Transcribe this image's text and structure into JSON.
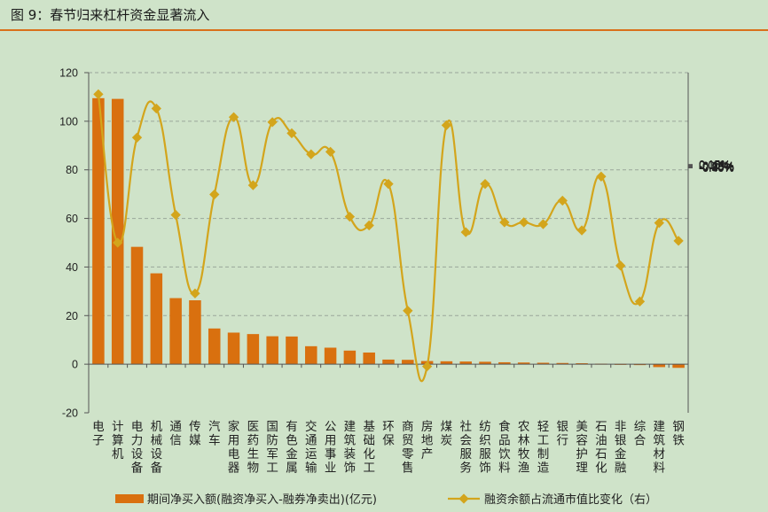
{
  "title": "图 9：春节归来杠杆资金显著流入",
  "chart_data": {
    "type": "bar+line",
    "categories": [
      "电子",
      "计算机",
      "电力设备",
      "机械设备",
      "通信",
      "传媒",
      "汽车",
      "家用电器",
      "医药生物",
      "国防军工",
      "有色金属",
      "交通运输",
      "公用事业",
      "建筑装饰",
      "基础化工",
      "环保",
      "商贸零售",
      "房地产",
      "煤炭",
      "社会服务",
      "纺织服饰",
      "食品饮料",
      "农林牧渔",
      "轻工制造",
      "银行",
      "美容护理",
      "石油石化",
      "非银金融",
      "综合",
      "建筑材料",
      "钢铁"
    ],
    "series": [
      {
        "name": "期间净买入额(融资净买入-融券净卖出)(亿元)",
        "type": "bar",
        "axis": "left",
        "color": "#d9700f",
        "values": [
          109.5,
          109.2,
          48.3,
          37.4,
          27.2,
          26.3,
          14.7,
          13.0,
          12.4,
          11.5,
          11.4,
          7.4,
          6.8,
          5.6,
          4.8,
          1.9,
          1.8,
          1.3,
          1.2,
          1.1,
          1.0,
          0.8,
          0.7,
          0.6,
          0.5,
          0.4,
          0.2,
          0.1,
          0.0,
          -1.2,
          -1.5
        ]
      },
      {
        "name": "融资余额占流通市值比变化（右）",
        "type": "line",
        "axis": "right",
        "color": "#d3a51c",
        "values": [
          0.115,
          -0.125,
          0.045,
          0.092,
          -0.08,
          -0.207,
          -0.047,
          0.078,
          -0.032,
          0.07,
          0.052,
          0.018,
          0.022,
          -0.083,
          -0.097,
          -0.03,
          -0.235,
          -0.325,
          0.065,
          -0.108,
          -0.03,
          -0.092,
          -0.092,
          -0.095,
          -0.057,
          -0.105,
          -0.018,
          -0.162,
          -0.22,
          -0.093,
          -0.122
        ]
      }
    ],
    "y_left": {
      "min": -20,
      "max": 120,
      "ticks": [
        "-20",
        "0",
        "20",
        "40",
        "60",
        "80",
        "100",
        "120"
      ]
    },
    "y_right": {
      "min": -0.4,
      "max": 0.15,
      "ticks": [
        "-0.40%",
        "-0.35%",
        "-0.30%",
        "-0.25%",
        "-0.20%",
        "-0.15%",
        "-0.10%",
        "-0.05%",
        "0.00%",
        "0.05%",
        "0.10%",
        "0.15%"
      ]
    },
    "grid": "dashed horizontal",
    "legend": {
      "position": "bottom",
      "items": [
        "期间净买入额(融资净买入-融券净卖出)(亿元)",
        "融资余额占流通市值比变化（右）"
      ]
    }
  }
}
